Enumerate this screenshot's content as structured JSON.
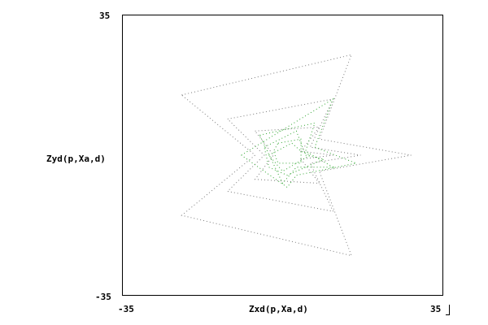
{
  "chart_data": {
    "type": "scatter",
    "title": "",
    "xlabel": "Zxd(p,Xa,d)",
    "ylabel": "Zyd(p,Xa,d)",
    "xlim": [
      -35,
      35
    ],
    "ylim": [
      -35,
      35
    ],
    "x_tick_labels": [
      "-35",
      "35"
    ],
    "y_tick_labels": [
      "35",
      "-35"
    ],
    "grid": false,
    "legend": "none",
    "colors": {
      "gray": "#7a7a7a",
      "green": "#2fa52f"
    },
    "series": [
      {
        "style": "dotted",
        "color": "gray",
        "points": [
          [
            -22,
            15
          ],
          [
            15,
            25
          ],
          [
            8,
            4
          ],
          [
            28,
            0
          ],
          [
            8,
            -4
          ],
          [
            15,
            -25
          ],
          [
            -22,
            -15
          ],
          [
            -6,
            0
          ],
          [
            -22,
            15
          ]
        ]
      },
      {
        "style": "dotted",
        "color": "gray",
        "points": [
          [
            -12,
            9
          ],
          [
            11,
            14
          ],
          [
            6,
            2
          ],
          [
            17,
            0
          ],
          [
            6,
            -2
          ],
          [
            11,
            -14
          ],
          [
            -12,
            -9
          ],
          [
            -4,
            0
          ],
          [
            -12,
            9
          ]
        ]
      },
      {
        "style": "dotted",
        "color": "gray",
        "points": [
          [
            -6,
            6
          ],
          [
            8,
            7
          ],
          [
            4,
            1
          ],
          [
            11,
            0
          ],
          [
            4,
            -1
          ],
          [
            8,
            -7
          ],
          [
            -6,
            -6
          ],
          [
            -2,
            0
          ],
          [
            -6,
            6
          ]
        ]
      },
      {
        "style": "dotted",
        "color": "green",
        "points": [
          [
            -9,
            0
          ],
          [
            11,
            14
          ],
          [
            7,
            2
          ],
          [
            16,
            -2
          ],
          [
            3,
            -5
          ],
          [
            1,
            -8
          ],
          [
            -4,
            -4
          ],
          [
            -9,
            0
          ]
        ]
      },
      {
        "style": "dotted",
        "color": "green",
        "points": [
          [
            -5,
            5
          ],
          [
            7,
            8
          ],
          [
            5,
            1
          ],
          [
            11,
            -3
          ],
          [
            3,
            -3
          ],
          [
            0,
            -7
          ],
          [
            -5,
            5
          ]
        ]
      },
      {
        "style": "dotted",
        "color": "green",
        "points": [
          [
            -4,
            2
          ],
          [
            3,
            6
          ],
          [
            5,
            0
          ],
          [
            9,
            -1
          ],
          [
            1,
            -5
          ],
          [
            -3,
            -3
          ],
          [
            -4,
            2
          ]
        ]
      },
      {
        "style": "dotted",
        "color": "green",
        "points": [
          [
            -3,
            0
          ],
          [
            2,
            3
          ],
          [
            4,
            1
          ],
          [
            6,
            0
          ],
          [
            3,
            -2
          ],
          [
            0,
            -4
          ],
          [
            -3,
            0
          ]
        ]
      },
      {
        "style": "dotted",
        "color": "green",
        "points": [
          [
            -1,
            3
          ],
          [
            4,
            4
          ],
          [
            4,
            -2
          ],
          [
            -1,
            -2
          ],
          [
            -2,
            1
          ],
          [
            -1,
            3
          ]
        ]
      }
    ]
  }
}
